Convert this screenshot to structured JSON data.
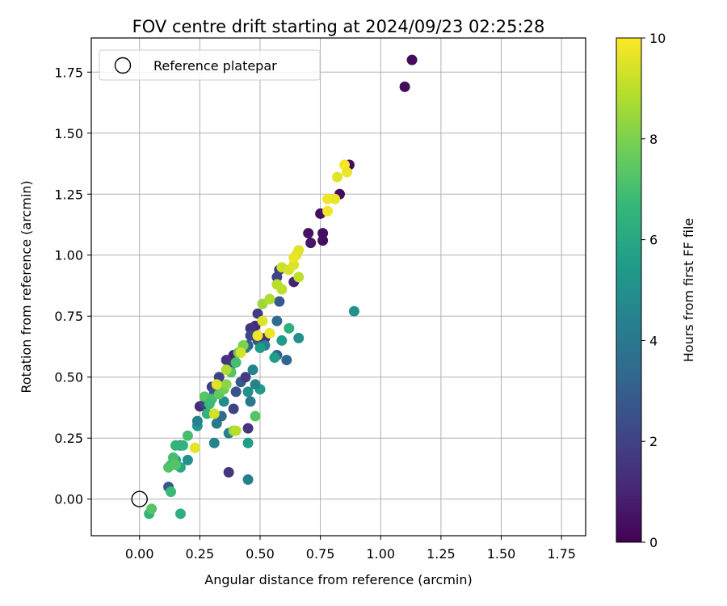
{
  "chart_data": {
    "type": "scatter",
    "title": "FOV centre drift starting at 2024/09/23 02:25:28",
    "xlabel": "Angular distance from reference (arcmin)",
    "ylabel": "Rotation from reference (arcmin)",
    "xlim": [
      -0.2,
      1.85
    ],
    "ylim": [
      -0.15,
      1.89
    ],
    "x_ticks": [
      0.0,
      0.25,
      0.5,
      0.75,
      1.0,
      1.25,
      1.5,
      1.75
    ],
    "y_ticks": [
      0.0,
      0.25,
      0.5,
      0.75,
      1.0,
      1.25,
      1.5,
      1.75
    ],
    "x_tick_labels": [
      "0.00",
      "0.25",
      "0.50",
      "0.75",
      "1.00",
      "1.25",
      "1.50",
      "1.75"
    ],
    "y_tick_labels": [
      "0.00",
      "0.25",
      "0.50",
      "0.75",
      "1.00",
      "1.25",
      "1.50",
      "1.75"
    ],
    "grid": true,
    "legend": {
      "placement": "top-left",
      "label": "Reference platepar"
    },
    "reference_point": {
      "x": 0.0,
      "y": 0.0
    },
    "colorbar": {
      "label": "Hours from first FF file",
      "min": 0,
      "max": 10,
      "ticks": [
        0,
        2,
        4,
        6,
        8,
        10
      ],
      "tick_labels": [
        "0",
        "2",
        "4",
        "6",
        "8",
        "10"
      ],
      "colormap": [
        "#440154",
        "#482878",
        "#3e4989",
        "#31688e",
        "#26828e",
        "#1f9e89",
        "#35b779",
        "#6ece58",
        "#b5de2b",
        "#fde725"
      ]
    },
    "series": [
      {
        "points": [
          [
            1.13,
            1.8,
            0.3
          ],
          [
            1.1,
            1.69,
            0.3
          ],
          [
            0.87,
            1.37,
            0.3
          ],
          [
            0.83,
            1.25,
            0.3
          ],
          [
            0.75,
            1.17,
            0.4
          ],
          [
            0.7,
            1.09,
            0.5
          ],
          [
            0.76,
            1.09,
            0.4
          ],
          [
            0.76,
            1.06,
            0.4
          ],
          [
            0.71,
            1.05,
            0.6
          ],
          [
            0.64,
            0.89,
            0.9
          ],
          [
            0.58,
            0.94,
            1.5
          ],
          [
            0.57,
            0.91,
            2.0
          ],
          [
            0.58,
            0.81,
            2.8
          ],
          [
            0.49,
            0.76,
            1.8
          ],
          [
            0.48,
            0.71,
            1.2
          ],
          [
            0.46,
            0.7,
            1.5
          ],
          [
            0.46,
            0.67,
            2.2
          ],
          [
            0.49,
            0.65,
            2.5
          ],
          [
            0.52,
            0.66,
            1.3
          ],
          [
            0.45,
            0.63,
            2.8
          ],
          [
            0.39,
            0.59,
            1.0
          ],
          [
            0.38,
            0.55,
            2.3
          ],
          [
            0.36,
            0.57,
            1.5
          ],
          [
            0.33,
            0.5,
            2.0
          ],
          [
            0.3,
            0.46,
            1.8
          ],
          [
            0.31,
            0.44,
            2.5
          ],
          [
            0.28,
            0.41,
            1.5
          ],
          [
            0.25,
            0.38,
            1.2
          ],
          [
            0.27,
            0.39,
            2.0
          ],
          [
            0.4,
            0.44,
            2.5
          ],
          [
            0.42,
            0.48,
            2.8
          ],
          [
            0.39,
            0.37,
            2.0
          ],
          [
            0.44,
            0.5,
            1.8
          ],
          [
            0.45,
            0.29,
            1.6
          ],
          [
            0.37,
            0.11,
            1.5
          ],
          [
            0.57,
            0.59,
            3.0
          ],
          [
            0.61,
            0.57,
            3.3
          ],
          [
            0.47,
            0.53,
            4.5
          ],
          [
            0.46,
            0.4,
            4.0
          ],
          [
            0.44,
            0.62,
            4.0
          ],
          [
            0.57,
            0.73,
            3.5
          ],
          [
            0.52,
            0.63,
            4.3
          ],
          [
            0.59,
            0.65,
            5.5
          ],
          [
            0.62,
            0.7,
            6.3
          ],
          [
            0.66,
            0.66,
            5.0
          ],
          [
            0.89,
            0.77,
            5.0
          ],
          [
            0.5,
            0.45,
            5.5
          ],
          [
            0.48,
            0.47,
            4.5
          ],
          [
            0.45,
            0.44,
            5.0
          ],
          [
            0.35,
            0.4,
            4.8
          ],
          [
            0.32,
            0.31,
            4.0
          ],
          [
            0.34,
            0.34,
            3.5
          ],
          [
            0.37,
            0.27,
            4.3
          ],
          [
            0.31,
            0.23,
            4.5
          ],
          [
            0.24,
            0.3,
            5.3
          ],
          [
            0.24,
            0.32,
            4.5
          ],
          [
            0.45,
            0.23,
            5.5
          ],
          [
            0.45,
            0.08,
            4.3
          ],
          [
            0.12,
            0.05,
            2.8
          ],
          [
            0.17,
            0.22,
            4.0
          ],
          [
            0.2,
            0.16,
            5.0
          ],
          [
            0.15,
            0.16,
            5.5
          ],
          [
            0.17,
            0.13,
            6.0
          ],
          [
            0.18,
            0.22,
            6.5
          ],
          [
            0.15,
            0.22,
            6.5
          ],
          [
            0.2,
            0.26,
            7.0
          ],
          [
            0.13,
            0.14,
            7.0
          ],
          [
            0.12,
            0.13,
            7.2
          ],
          [
            0.14,
            0.17,
            7.0
          ],
          [
            0.15,
            0.14,
            7.3
          ],
          [
            0.13,
            0.03,
            6.8
          ],
          [
            0.17,
            -0.06,
            6.3
          ],
          [
            0.04,
            -0.06,
            6.5
          ],
          [
            0.05,
            -0.04,
            7.3
          ],
          [
            0.28,
            0.35,
            6.5
          ],
          [
            0.27,
            0.42,
            7.3
          ],
          [
            0.3,
            0.41,
            7.0
          ],
          [
            0.29,
            0.39,
            6.8
          ],
          [
            0.33,
            0.43,
            7.5
          ],
          [
            0.35,
            0.45,
            7.8
          ],
          [
            0.36,
            0.47,
            8.2
          ],
          [
            0.38,
            0.52,
            7.3
          ],
          [
            0.4,
            0.56,
            7.0
          ],
          [
            0.41,
            0.6,
            7.5
          ],
          [
            0.43,
            0.63,
            8.0
          ],
          [
            0.48,
            0.34,
            7.3
          ],
          [
            0.39,
            0.28,
            8.4
          ],
          [
            0.4,
            0.28,
            8.9
          ],
          [
            0.31,
            0.35,
            9.3
          ],
          [
            0.23,
            0.21,
            9.6
          ],
          [
            0.32,
            0.47,
            9.5
          ],
          [
            0.36,
            0.53,
            8.8
          ],
          [
            0.42,
            0.6,
            9.4
          ],
          [
            0.49,
            0.67,
            9.8
          ],
          [
            0.54,
            0.68,
            9.7
          ],
          [
            0.51,
            0.73,
            9.5
          ],
          [
            0.51,
            0.8,
            8.5
          ],
          [
            0.54,
            0.82,
            8.8
          ],
          [
            0.57,
            0.88,
            8.9
          ],
          [
            0.59,
            0.86,
            9.0
          ],
          [
            0.59,
            0.95,
            9.2
          ],
          [
            0.62,
            0.94,
            9.4
          ],
          [
            0.64,
            0.96,
            9.5
          ],
          [
            0.65,
            1.0,
            9.3
          ],
          [
            0.66,
            1.02,
            9.6
          ],
          [
            0.66,
            0.91,
            9.0
          ],
          [
            0.64,
            0.99,
            9.7
          ],
          [
            0.78,
            1.23,
            9.8
          ],
          [
            0.81,
            1.23,
            9.7
          ],
          [
            0.78,
            1.18,
            9.8
          ],
          [
            0.82,
            1.32,
            9.6
          ],
          [
            0.85,
            1.37,
            9.9
          ],
          [
            0.86,
            1.34,
            9.7
          ],
          [
            0.56,
            0.58,
            5.5
          ],
          [
            0.5,
            0.62,
            5.5
          ]
        ]
      }
    ]
  }
}
